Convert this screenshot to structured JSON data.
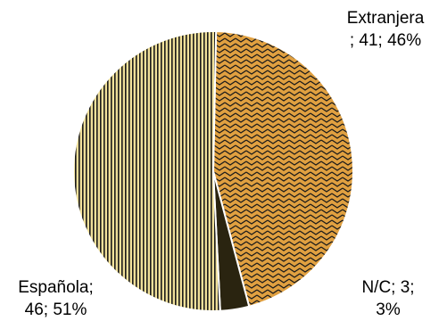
{
  "chart_data": {
    "type": "pie",
    "title": "",
    "categories": [
      "Extranjera",
      "N/C",
      "Española"
    ],
    "values": [
      41,
      3,
      46
    ],
    "percentages": [
      46,
      3,
      51
    ],
    "colors": {
      "Extranjera": "#e0a040",
      "N/C": "#2a2410",
      "Española": "#f0e09a",
      "pattern_ink": "#1a1a1a",
      "slice_border": "#ffffff"
    },
    "slice_patterns": {
      "Extranjera": "zigzag",
      "N/C": "solid",
      "Española": "vertical-stripes"
    },
    "legend": "none"
  },
  "labels": {
    "extranjera_line1": "Extranjera",
    "extranjera_line2": "; 41; 46%",
    "nc_line1": "N/C; 3;",
    "nc_line2": "3%",
    "espanola_line1": "Española;",
    "espanola_line2": "46; 51%"
  }
}
